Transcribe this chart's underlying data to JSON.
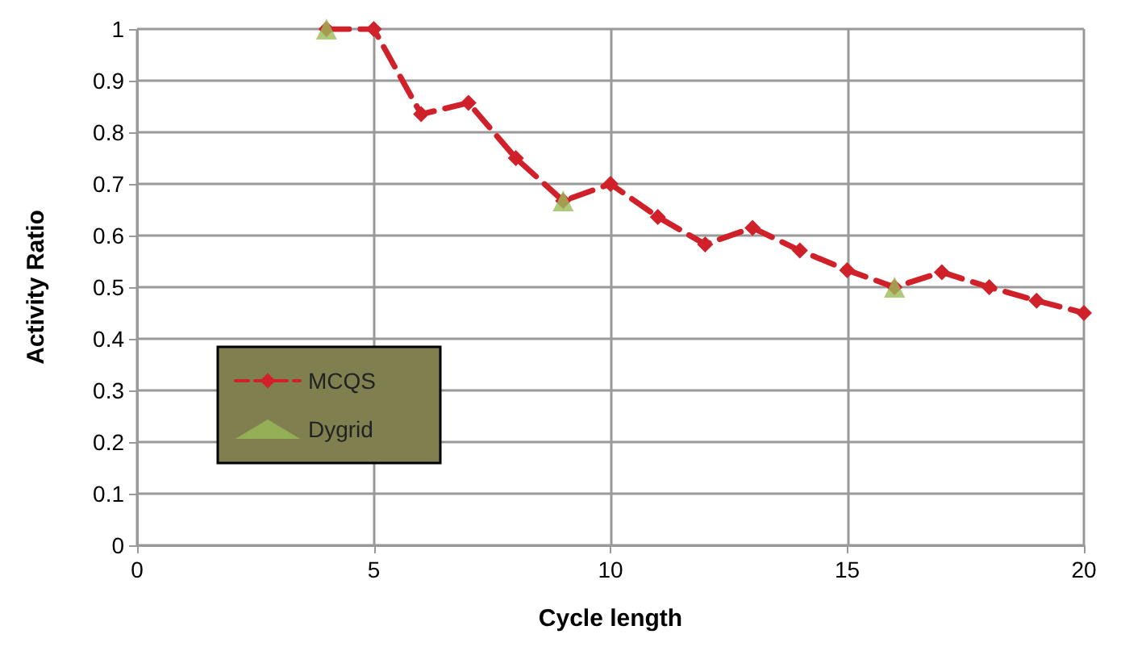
{
  "chart_data": {
    "type": "line",
    "xlabel": "Cycle length",
    "ylabel": "Activity Ratio",
    "xlim": [
      0,
      20
    ],
    "xticks": [
      0,
      5,
      10,
      15,
      20
    ],
    "ylim": [
      0,
      1
    ],
    "yticks": [
      0,
      0.1,
      0.2,
      0.3,
      0.4,
      0.5,
      0.6,
      0.7,
      0.8,
      0.9,
      1
    ],
    "grid": true,
    "legend": "bottom left",
    "line_style": "dashed",
    "marker": "diamond",
    "series": [
      {
        "name": "MCQS",
        "color": "#d0202a",
        "x": [
          4,
          5,
          6,
          7,
          8,
          9,
          10,
          11,
          12,
          13,
          14,
          15,
          16,
          17,
          18,
          19,
          20
        ],
        "values": [
          1,
          1,
          0.835,
          0.857,
          0.75,
          0.667,
          0.7,
          0.636,
          0.583,
          0.615,
          0.571,
          0.533,
          0.5,
          0.529,
          0.5,
          0.474,
          0.45
        ]
      },
      {
        "name": "Dygrid",
        "type": "scatter",
        "marker": "triangle",
        "color": "#9bbb59",
        "x": [
          4,
          9,
          16
        ],
        "values": [
          1,
          0.667,
          0.5
        ]
      }
    ]
  }
}
